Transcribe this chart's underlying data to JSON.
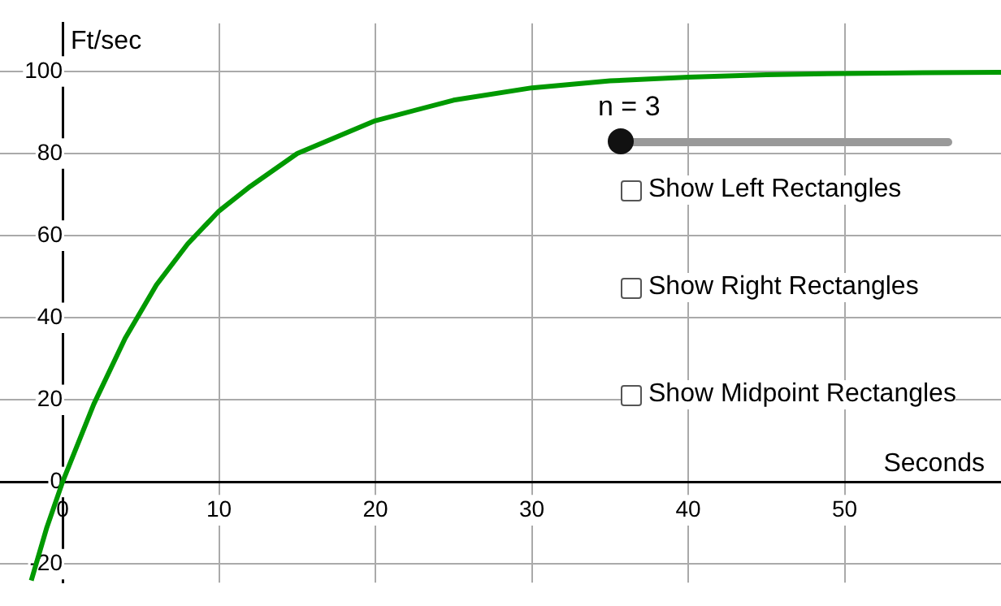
{
  "chart_data": {
    "type": "line",
    "xlabel": "Seconds",
    "ylabel": "Ft/sec",
    "x": [
      -2,
      -1,
      0,
      2,
      4,
      6,
      8,
      10,
      12,
      15,
      20,
      25,
      30,
      35,
      40,
      45,
      50,
      55,
      60
    ],
    "series": [
      {
        "color": "#009900",
        "values": [
          -24,
          -11,
          0,
          19,
          35,
          48,
          58,
          66,
          72,
          80,
          88,
          93,
          96,
          97.7,
          98.6,
          99.2,
          99.5,
          99.7,
          99.8
        ]
      }
    ],
    "xlim": [
      -4,
      60
    ],
    "ylim": [
      -24.5,
      111.7
    ],
    "xticks": [
      0,
      10,
      20,
      30,
      40,
      50
    ],
    "yticks": [
      -20,
      0,
      20,
      40,
      60,
      80,
      100
    ],
    "grid": true,
    "legend": false,
    "marker": "none",
    "line_style": "solid",
    "annotations": [
      "n = 3",
      "Show Left Rectangles",
      "Show Right Rectangles",
      "Show Midpoint Rectangles"
    ]
  }
}
